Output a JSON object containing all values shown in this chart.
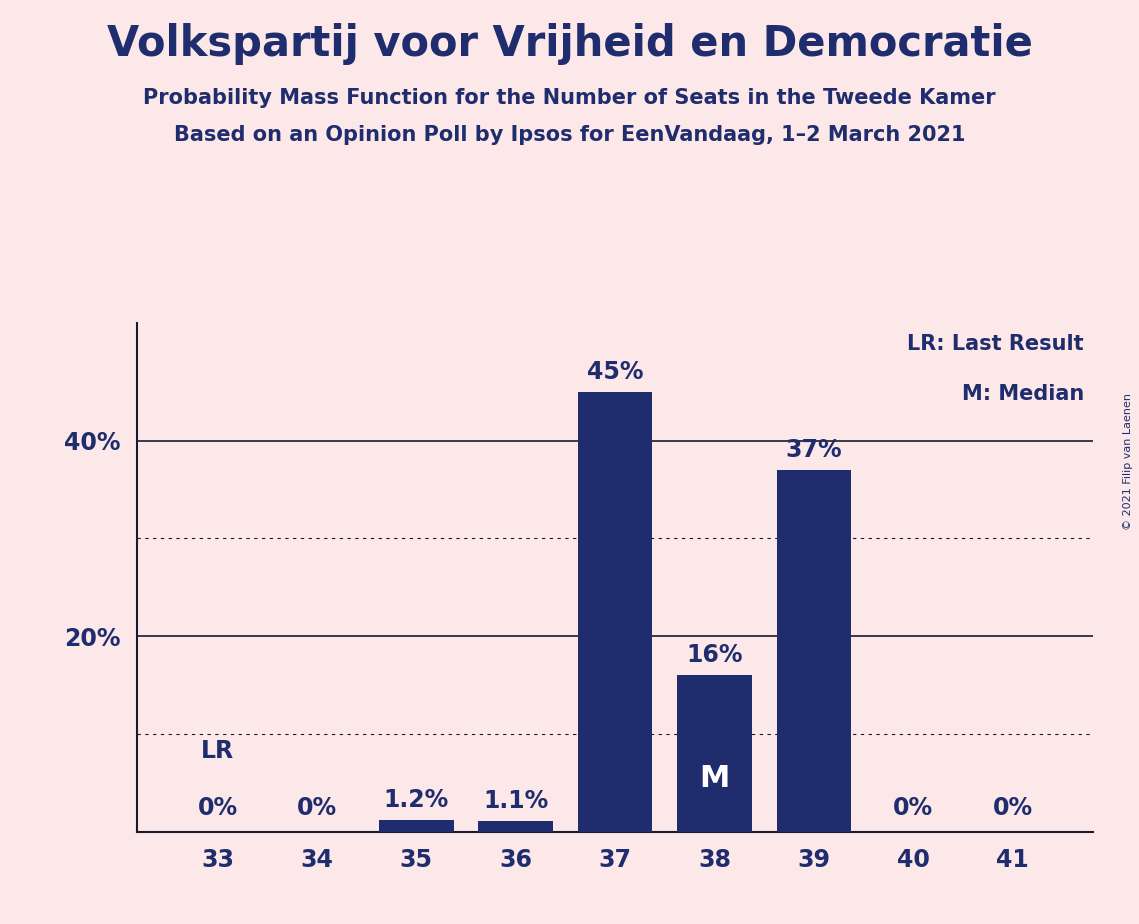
{
  "title": "Volkspartij voor Vrijheid en Democratie",
  "subtitle1": "Probability Mass Function for the Number of Seats in the Tweede Kamer",
  "subtitle2": "Based on an Opinion Poll by Ipsos for EenVandaag, 1–2 March 2021",
  "copyright": "© 2021 Filip van Laenen",
  "categories": [
    33,
    34,
    35,
    36,
    37,
    38,
    39,
    40,
    41
  ],
  "values": [
    0.0,
    0.0,
    1.2,
    1.1,
    45.0,
    16.0,
    37.0,
    0.0,
    0.0
  ],
  "bar_color": "#1f2d6e",
  "background_color": "#fce8e8",
  "bar_labels": [
    "0%",
    "0%",
    "1.2%",
    "1.1%",
    "45%",
    "16%",
    "37%",
    "0%",
    "0%"
  ],
  "median_bar": 38,
  "last_result_bar": 33,
  "legend_lr": "LR: Last Result",
  "legend_m": "M: Median",
  "ytick_positions": [
    0,
    20,
    40
  ],
  "ytick_labels": [
    "",
    "20%",
    "40%"
  ],
  "solid_gridlines": [
    20.0,
    40.0
  ],
  "dotted_gridlines": [
    10.0,
    30.0
  ],
  "ylim": [
    0,
    52
  ],
  "lr_label": "LR",
  "m_label": "M",
  "title_fontsize": 30,
  "subtitle_fontsize": 15,
  "bar_label_fontsize": 17,
  "tick_fontsize": 17,
  "legend_fontsize": 15,
  "m_label_fontsize": 22,
  "lr_label_color": "#1f2d6e",
  "m_label_color": "#ffffff",
  "copyright_fontsize": 8
}
